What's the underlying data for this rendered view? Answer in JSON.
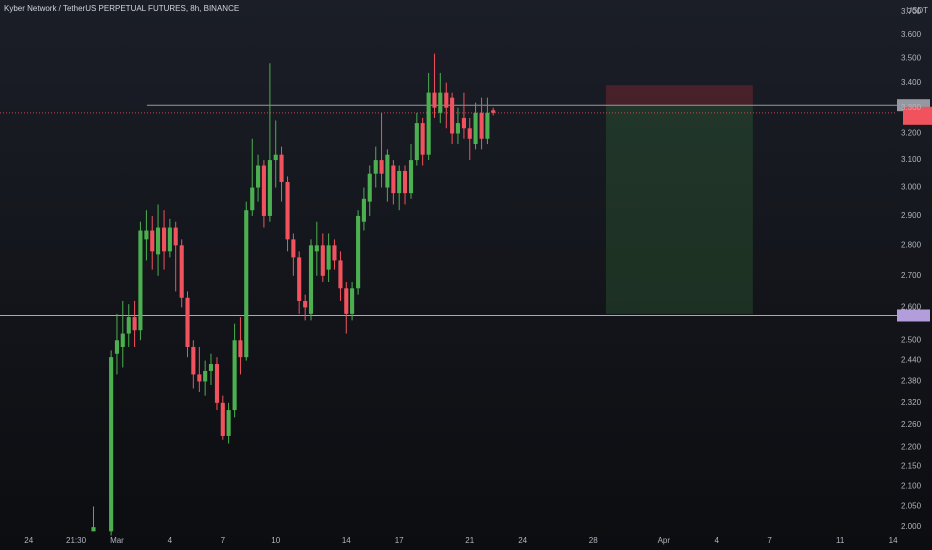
{
  "chart_data": {
    "type": "candlestick",
    "title": "Kyber Network / TetherUS PERPETUAL FUTURES, 8h, BINANCE",
    "y_unit": "USDT",
    "log_scale": true,
    "grid": false,
    "up_color": "#4caf50",
    "down_color": "#f0525e",
    "x": [
      -1.33,
      -0.33,
      0,
      0.33,
      0.67,
      1,
      1.33,
      1.67,
      2,
      2.33,
      2.67,
      3,
      3.33,
      3.67,
      4,
      4.33,
      4.67,
      5,
      5.33,
      5.67,
      6,
      6.33,
      6.67,
      7,
      7.33,
      7.67,
      8,
      8.33,
      8.67,
      9,
      9.33,
      9.67,
      10,
      10.33,
      10.67,
      11,
      11.33,
      11.67,
      12,
      12.33,
      12.67,
      13,
      13.33,
      13.67,
      14,
      14.33,
      14.67,
      15,
      15.33,
      15.67,
      16,
      16.33,
      16.67,
      17,
      17.33,
      17.67,
      18,
      18.33,
      18.67,
      19,
      19.33,
      19.67,
      20,
      20.33,
      20.67,
      21,
      21.33
    ],
    "open": [
      1.99,
      1.99,
      2.46,
      2.48,
      2.52,
      2.57,
      2.53,
      2.82,
      2.85,
      2.77,
      2.86,
      2.78,
      2.86,
      2.8,
      2.63,
      2.48,
      2.4,
      2.38,
      2.41,
      2.43,
      2.32,
      2.23,
      2.3,
      2.5,
      2.45,
      2.92,
      3.0,
      3.08,
      2.9,
      3.1,
      3.12,
      3.02,
      2.82,
      2.76,
      2.62,
      2.58,
      2.78,
      2.8,
      2.72,
      2.8,
      2.75,
      2.66,
      2.58,
      2.66,
      2.88,
      2.95,
      3.05,
      3.1,
      3.0,
      3.08,
      2.98,
      3.06,
      2.98,
      3.1,
      3.24,
      3.12,
      3.36,
      3.28,
      3.36,
      3.34,
      3.2,
      3.26,
      3.22,
      3.16,
      3.28,
      3.18,
      3.29
    ],
    "high": [
      2.05,
      2.47,
      2.58,
      2.62,
      2.61,
      2.62,
      2.88,
      2.92,
      2.9,
      2.94,
      2.92,
      2.89,
      2.88,
      2.82,
      2.65,
      2.5,
      2.48,
      2.44,
      2.46,
      2.45,
      2.34,
      2.32,
      2.55,
      2.57,
      2.95,
      3.18,
      3.12,
      3.1,
      3.48,
      3.25,
      3.15,
      3.04,
      2.84,
      2.78,
      2.64,
      2.82,
      2.88,
      2.84,
      2.84,
      2.82,
      2.78,
      2.68,
      2.68,
      2.92,
      3.0,
      3.08,
      3.15,
      3.28,
      3.14,
      3.1,
      3.08,
      3.08,
      3.16,
      3.28,
      3.26,
      3.44,
      3.52,
      3.44,
      3.4,
      3.36,
      3.3,
      3.36,
      3.26,
      3.32,
      3.34,
      3.34,
      3.3
    ],
    "low": [
      1.99,
      1.98,
      2.4,
      2.42,
      2.48,
      2.48,
      2.5,
      2.75,
      2.72,
      2.7,
      2.72,
      2.76,
      2.65,
      2.6,
      2.45,
      2.36,
      2.35,
      2.34,
      2.37,
      2.3,
      2.22,
      2.21,
      2.28,
      2.4,
      2.44,
      2.9,
      2.95,
      2.86,
      2.88,
      3.0,
      2.95,
      2.78,
      2.7,
      2.58,
      2.56,
      2.56,
      2.7,
      2.68,
      2.68,
      2.72,
      2.62,
      2.52,
      2.56,
      2.64,
      2.85,
      2.9,
      3.0,
      3.0,
      2.95,
      2.94,
      2.92,
      2.94,
      2.96,
      3.08,
      3.08,
      3.1,
      3.26,
      3.24,
      3.22,
      3.16,
      3.16,
      3.18,
      3.1,
      3.14,
      3.14,
      3.16,
      3.27
    ],
    "close": [
      2.0,
      2.45,
      2.5,
      2.52,
      2.57,
      2.53,
      2.85,
      2.85,
      2.78,
      2.86,
      2.78,
      2.86,
      2.8,
      2.63,
      2.48,
      2.4,
      2.38,
      2.41,
      2.43,
      2.32,
      2.23,
      2.3,
      2.5,
      2.45,
      2.92,
      3.0,
      3.08,
      2.9,
      3.1,
      3.12,
      3.02,
      2.82,
      2.76,
      2.62,
      2.6,
      2.8,
      2.8,
      2.7,
      2.8,
      2.75,
      2.66,
      2.58,
      2.66,
      2.9,
      2.96,
      3.05,
      3.1,
      3.05,
      3.12,
      2.98,
      3.06,
      2.98,
      3.1,
      3.24,
      3.12,
      3.36,
      3.3,
      3.36,
      3.3,
      3.2,
      3.24,
      3.22,
      3.18,
      3.28,
      3.18,
      3.28,
      3.28
    ],
    "xlim": [
      -6.63,
      44.22
    ],
    "xticks": [
      {
        "value": -5,
        "label": "24"
      },
      {
        "value": -2.32,
        "label": "21:30"
      },
      {
        "value": 0,
        "label": "Mar"
      },
      {
        "value": 3,
        "label": "4"
      },
      {
        "value": 6,
        "label": "7"
      },
      {
        "value": 9,
        "label": "10"
      },
      {
        "value": 13,
        "label": "14"
      },
      {
        "value": 16,
        "label": "17"
      },
      {
        "value": 20,
        "label": "21"
      },
      {
        "value": 23,
        "label": "24"
      },
      {
        "value": 27,
        "label": "28"
      },
      {
        "value": 31,
        "label": "Apr"
      },
      {
        "value": 34,
        "label": "4"
      },
      {
        "value": 37,
        "label": "7"
      },
      {
        "value": 41,
        "label": "11"
      },
      {
        "value": 44,
        "label": "14"
      }
    ],
    "ylim": [
      1.986,
      3.753
    ],
    "yticks": [
      {
        "value": 3.7,
        "label": "3.700"
      },
      {
        "value": 3.6,
        "label": "3.600"
      },
      {
        "value": 3.5,
        "label": "3.500"
      },
      {
        "value": 3.4,
        "label": "3.400"
      },
      {
        "value": 3.3,
        "label": "3.300"
      },
      {
        "value": 3.2,
        "label": "3.200"
      },
      {
        "value": 3.1,
        "label": "3.100"
      },
      {
        "value": 3.0,
        "label": "3.000"
      },
      {
        "value": 2.9,
        "label": "2.900"
      },
      {
        "value": 2.8,
        "label": "2.800"
      },
      {
        "value": 2.7,
        "label": "2.700"
      },
      {
        "value": 2.6,
        "label": "2.600"
      },
      {
        "value": 2.5,
        "label": "2.500"
      },
      {
        "value": 2.44,
        "label": "2.440"
      },
      {
        "value": 2.38,
        "label": "2.380"
      },
      {
        "value": 2.32,
        "label": "2.320"
      },
      {
        "value": 2.26,
        "label": "2.260"
      },
      {
        "value": 2.2,
        "label": "2.200"
      },
      {
        "value": 2.15,
        "label": "2.150"
      },
      {
        "value": 2.1,
        "label": "2.100"
      },
      {
        "value": 2.05,
        "label": "2.050"
      },
      {
        "value": 2.0,
        "label": "2.000"
      }
    ],
    "hlines": [
      {
        "value": 3.31,
        "start": 1.7,
        "color": "#9598a1"
      },
      {
        "value": 2.575,
        "color": "#b39ddb"
      }
    ],
    "price_line": {
      "value": 3.28,
      "color": "#f0525e"
    },
    "position": {
      "start": 27.72,
      "end": 36.05,
      "entry": 3.31,
      "stop": 3.39,
      "target": 2.58
    }
  }
}
